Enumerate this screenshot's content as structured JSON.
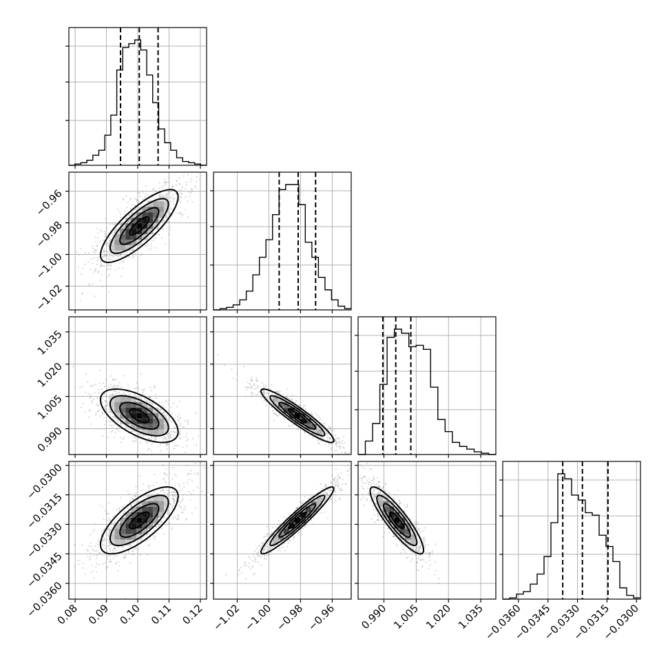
{
  "chart_data": {
    "type": "corner",
    "parameters": [
      {
        "range": [
          0.078,
          0.122
        ],
        "ticks": [
          0.08,
          0.09,
          0.1,
          0.11,
          0.12
        ],
        "tick_labels": [
          "0.08",
          "0.09",
          "0.10",
          "0.11",
          "0.12"
        ],
        "quantiles": [
          0.0945,
          0.1005,
          0.1065
        ],
        "hist_counts": [
          0,
          1,
          2,
          4,
          8,
          12,
          24,
          40,
          76,
          94,
          97,
          100,
          92,
          72,
          50,
          29,
          18,
          12,
          6,
          3,
          2,
          1,
          0
        ]
      },
      {
        "range": [
          -1.035,
          -0.948
        ],
        "ticks": [
          -1.02,
          -1.0,
          -0.98,
          -0.96
        ],
        "tick_labels": [
          "−1.02",
          "−1.00",
          "−0.98",
          "−0.96"
        ],
        "quantiles": [
          -0.9935,
          -0.9815,
          -0.9705
        ],
        "hist_counts": [
          0,
          1,
          2,
          4,
          8,
          15,
          28,
          42,
          56,
          76,
          96,
          100,
          100,
          84,
          54,
          42,
          26,
          16,
          8,
          3,
          1
        ]
      },
      {
        "range": [
          0.978,
          1.042
        ],
        "ticks": [
          0.99,
          1.005,
          1.02,
          1.035
        ],
        "tick_labels": [
          "0.990",
          "1.005",
          "1.020",
          "1.035"
        ],
        "quantiles": [
          0.9895,
          0.9955,
          1.0025
        ],
        "hist_counts": [
          0,
          10,
          23,
          52,
          87,
          93,
          90,
          80,
          81,
          78,
          50,
          26,
          17,
          9,
          6,
          4,
          2,
          1,
          0
        ]
      },
      {
        "range": [
          -0.0368,
          -0.0298
        ],
        "ticks": [
          -0.036,
          -0.0345,
          -0.033,
          -0.0315,
          -0.03
        ],
        "tick_labels": [
          "−0.0360",
          "−0.0345",
          "−0.0330",
          "−0.0315",
          "−0.0300"
        ],
        "quantiles": [
          -0.03375,
          -0.03275,
          -0.03145
        ],
        "hist_counts": [
          0,
          1,
          4,
          6,
          12,
          20,
          34,
          61,
          100,
          96,
          83,
          79,
          69,
          67,
          51,
          42,
          30,
          9,
          3,
          1
        ]
      }
    ],
    "correlations": [
      [
        1,
        0.8,
        -0.6,
        0.72
      ],
      [
        0.8,
        1,
        -0.93,
        0.95
      ],
      [
        -0.6,
        -0.93,
        1,
        -0.88
      ],
      [
        0.72,
        0.95,
        -0.88,
        1
      ]
    ],
    "means": [
      0.1005,
      -0.982,
      0.996,
      -0.0328
    ],
    "sds": [
      0.0062,
      0.0115,
      0.0062,
      0.00085
    ],
    "grid": true,
    "histogram_style": "step",
    "quantile_line_style": "dashed"
  }
}
